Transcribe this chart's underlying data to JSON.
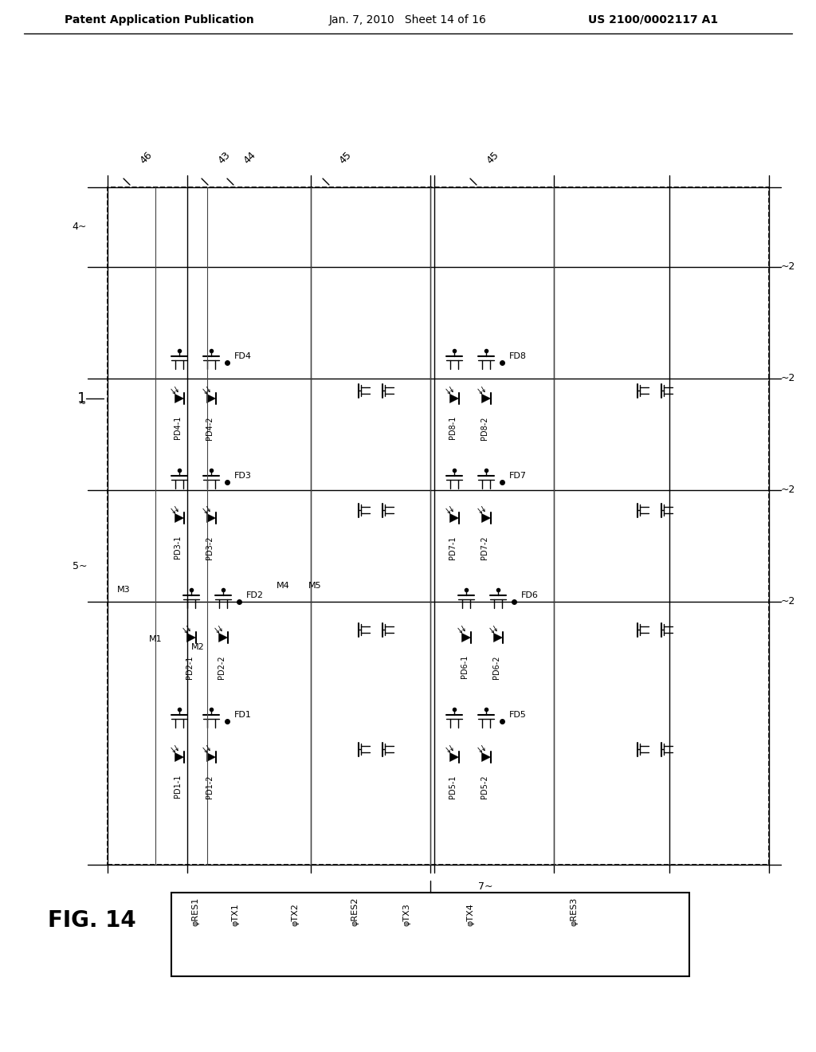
{
  "title_left": "Patent Application Publication",
  "title_mid": "Jan. 7, 2010   Sheet 14 of 16",
  "title_right": "US 2010/0002117 A1",
  "fig_label": "FIG. 14",
  "background_color": "#ffffff",
  "line_color": "#000000",
  "label_fontsize": 11,
  "header_fontsize": 10,
  "small_fontsize": 8,
  "tiny_fontsize": 7,
  "signal_labels": [
    "φRES1",
    "φTX1",
    "φTX2",
    "φRES2",
    "φTX3",
    "φTX4",
    "φRES3"
  ],
  "col_labels_top": [
    "46",
    "43",
    "44",
    "45",
    "45"
  ],
  "row_label": "1",
  "side_labels_2": [
    "~2",
    "~2",
    "~2",
    "~2"
  ],
  "side_label_4": "4~",
  "side_label_5": "5~",
  "ref_7": "7~",
  "pixel_labels": [
    "FD4",
    "PD4-1",
    "PD4-2",
    "FD8",
    "PD8-1",
    "PD8-2",
    "FD3",
    "PD3-1",
    "PD3-2",
    "FD7",
    "PD7-1",
    "PD7-2",
    "FD2",
    "PD2-1",
    "PD2-2",
    "M3",
    "M1",
    "M2",
    "M4",
    "M5",
    "FD6",
    "PD6-1",
    "PD6-2",
    "FD1",
    "PD1-1",
    "PD1-2",
    "FD5",
    "PD5-1",
    "PD5-2"
  ]
}
